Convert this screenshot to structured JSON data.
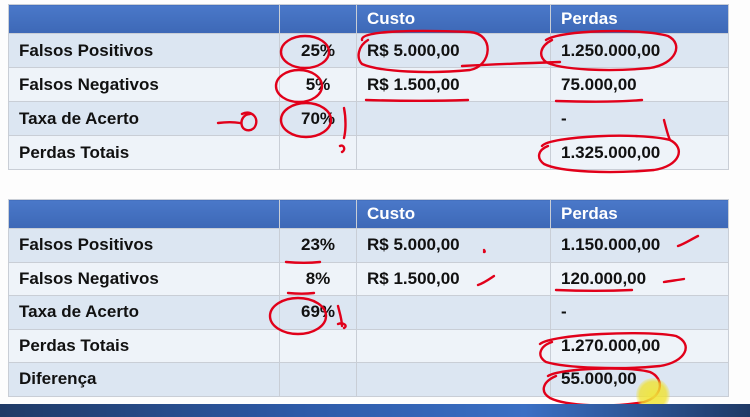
{
  "table1": {
    "headers": [
      "",
      "",
      "Custo",
      "Perdas"
    ],
    "rows": [
      {
        "label": "Falsos Positivos",
        "pct": "25%",
        "cost": "R$ 5.000,00",
        "loss": "1.250.000,00"
      },
      {
        "label": "Falsos Negativos",
        "pct": "5%",
        "cost": "R$ 1.500,00",
        "loss": "75.000,00"
      },
      {
        "label": "Taxa de Acerto",
        "pct": "70%",
        "cost": "",
        "loss": "-"
      },
      {
        "label": "Perdas Totais",
        "pct": "",
        "cost": "",
        "loss": "1.325.000,00"
      }
    ]
  },
  "table2": {
    "headers": [
      "",
      "",
      "Custo",
      "Perdas"
    ],
    "rows": [
      {
        "label": "Falsos Positivos",
        "pct": "23%",
        "cost": "R$ 5.000,00",
        "loss": "1.150.000,00"
      },
      {
        "label": "Falsos Negativos",
        "pct": "8%",
        "cost": "R$ 1.500,00",
        "loss": "120.000,00"
      },
      {
        "label": "Taxa de Acerto",
        "pct": "69%",
        "cost": "",
        "loss": "-"
      },
      {
        "label": "Perdas Totais",
        "pct": "",
        "cost": "",
        "loss": "1.270.000,00"
      },
      {
        "label": "Diferença",
        "pct": "",
        "cost": "",
        "loss": "55.000,00"
      }
    ]
  },
  "colors": {
    "header_bg": "#4472c4",
    "row_odd": "#dce6f2",
    "row_even": "#eef3f9",
    "ink": "#e1001a",
    "cursor": "#f0e63c"
  }
}
